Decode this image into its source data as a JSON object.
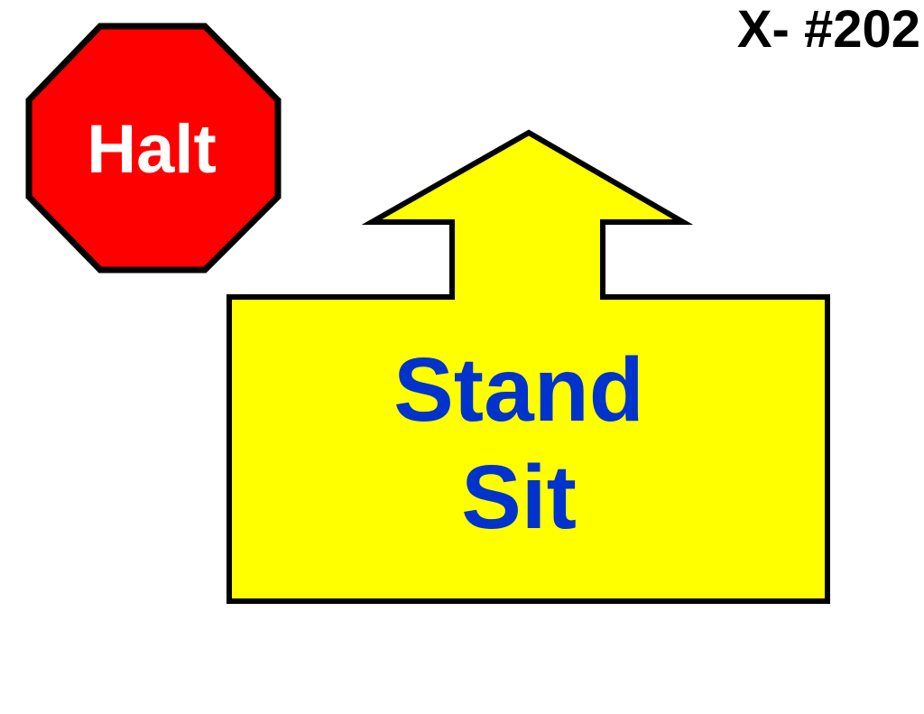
{
  "sign_code": "X- #202",
  "halt_sign": {
    "label": "Halt",
    "fill_color": "#ff0000",
    "text_color": "#ffffff",
    "icon": "stop-octagon-icon"
  },
  "arrow_panel": {
    "lines": [
      "Stand",
      "Sit"
    ],
    "fill_color": "#ffff00",
    "text_color": "#0033cc",
    "icon": "up-arrow-icon"
  },
  "outline_color": "#000000"
}
